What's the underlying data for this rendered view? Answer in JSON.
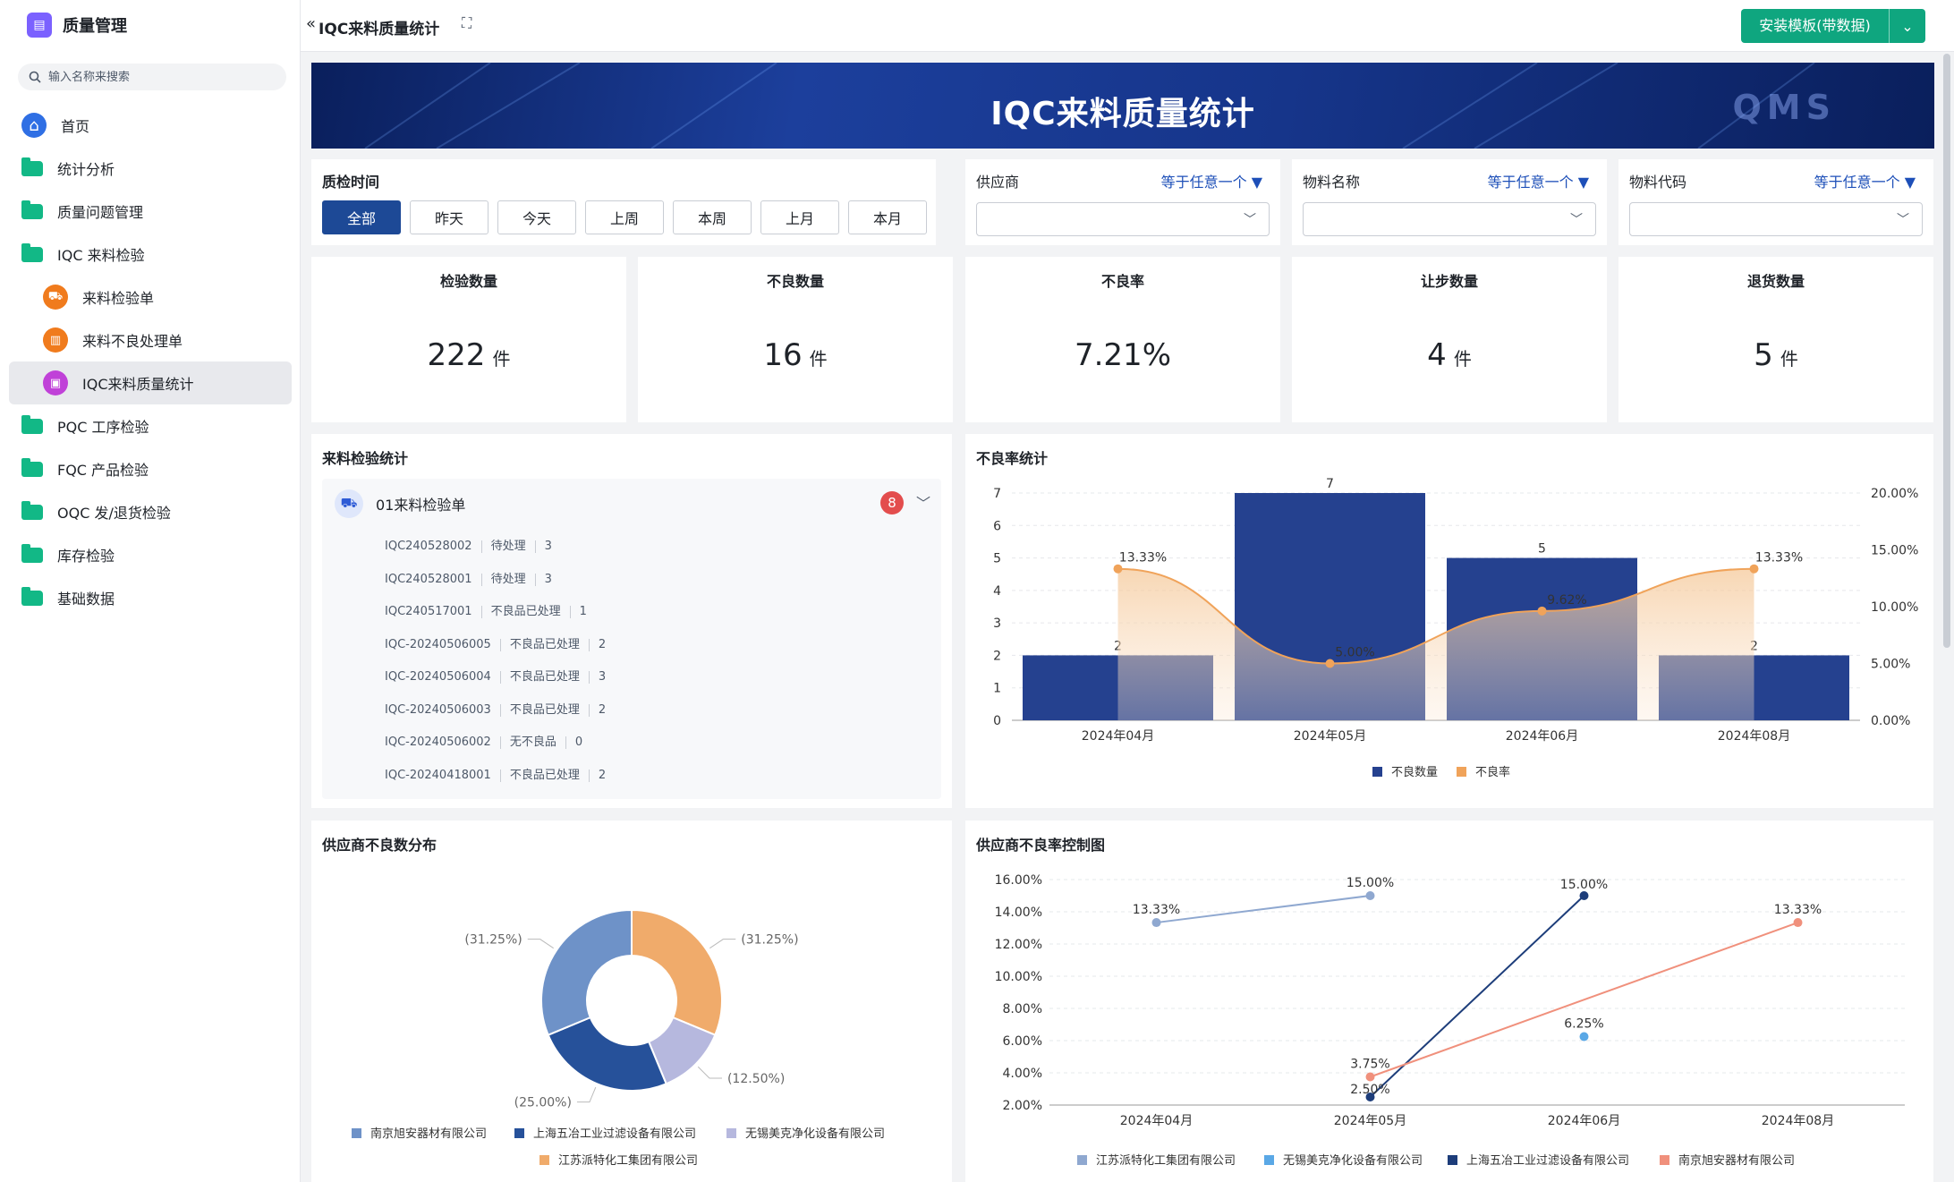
{
  "sidebar": {
    "app_title": "质量管理",
    "search_placeholder": "输入名称来搜索",
    "items": [
      {
        "label": "首页",
        "icon": "home-icon",
        "level": 0
      },
      {
        "label": "统计分析",
        "icon": "folder-icon",
        "level": 0
      },
      {
        "label": "质量问题管理",
        "icon": "folder-icon",
        "level": 0
      },
      {
        "label": "IQC 来料检验",
        "icon": "folder-icon",
        "level": 0
      },
      {
        "label": "来料检验单",
        "icon": "truck-icon",
        "level": 1
      },
      {
        "label": "来料不良处理单",
        "icon": "report-icon",
        "level": 1
      },
      {
        "label": "IQC来料质量统计",
        "icon": "chart-icon",
        "level": 1,
        "active": true
      },
      {
        "label": "PQC 工序检验",
        "icon": "folder-icon",
        "level": 0
      },
      {
        "label": "FQC 产品检验",
        "icon": "folder-icon",
        "level": 0
      },
      {
        "label": "OQC 发/退货检验",
        "icon": "folder-icon",
        "level": 0
      },
      {
        "label": "库存检验",
        "icon": "folder-icon",
        "level": 0
      },
      {
        "label": "基础数据",
        "icon": "folder-icon",
        "level": 0
      }
    ]
  },
  "topbar": {
    "page_title": "IQC来料质量统计",
    "install_button": "安装模板(带数据)"
  },
  "banner": {
    "title": "IQC来料质量统计",
    "logo_text": "QMS"
  },
  "filters": {
    "date": {
      "label": "质检时间",
      "buttons": [
        "全部",
        "昨天",
        "今天",
        "上周",
        "本周",
        "上月",
        "本月"
      ],
      "selected": "全部"
    },
    "supplier": {
      "label": "供应商",
      "operator": "等于任意一个"
    },
    "material_name": {
      "label": "物料名称",
      "operator": "等于任意一个"
    },
    "material_code": {
      "label": "物料代码",
      "operator": "等于任意一个"
    }
  },
  "kpis": [
    {
      "title": "检验数量",
      "value": "222",
      "unit": "件"
    },
    {
      "title": "不良数量",
      "value": "16",
      "unit": "件"
    },
    {
      "title": "不良率",
      "value": "7.21%",
      "unit": ""
    },
    {
      "title": "让步数量",
      "value": "4",
      "unit": "件"
    },
    {
      "title": "退货数量",
      "value": "5",
      "unit": "件"
    }
  ],
  "inspection_list": {
    "title": "来料检验统计",
    "group_name": "01来料检验单",
    "count": "8",
    "rows": [
      {
        "code": "IQC240528002",
        "status": "待处理",
        "qty": "3"
      },
      {
        "code": "IQC240528001",
        "status": "待处理",
        "qty": "3"
      },
      {
        "code": "IQC240517001",
        "status": "不良品已处理",
        "qty": "1"
      },
      {
        "code": "IQC-20240506005",
        "status": "不良品已处理",
        "qty": "2"
      },
      {
        "code": "IQC-20240506004",
        "status": "不良品已处理",
        "qty": "3"
      },
      {
        "code": "IQC-20240506003",
        "status": "不良品已处理",
        "qty": "2"
      },
      {
        "code": "IQC-20240506002",
        "status": "无不良品",
        "qty": "0"
      },
      {
        "code": "IQC-20240418001",
        "status": "不良品已处理",
        "qty": "2"
      }
    ]
  },
  "chart_data": [
    {
      "type": "bar",
      "title": "不良率统计",
      "categories": [
        "2024年04月",
        "2024年05月",
        "2024年06月",
        "2024年08月"
      ],
      "series": [
        {
          "name": "不良数量",
          "type": "bar",
          "values": [
            2,
            7,
            5,
            2
          ],
          "color": "#25418f"
        },
        {
          "name": "不良率",
          "type": "line",
          "values": [
            13.33,
            5.0,
            9.62,
            13.33
          ],
          "labels": [
            "13.33%",
            "5.00%",
            "9.62%",
            "13.33%"
          ],
          "color": "#f0a35a"
        }
      ],
      "ylim": [
        0,
        7
      ],
      "y2lim": [
        0,
        20
      ],
      "y_ticks": [
        "0",
        "1",
        "2",
        "3",
        "4",
        "5",
        "6",
        "7"
      ],
      "y2_ticks": [
        "0.00%",
        "5.00%",
        "10.00%",
        "15.00%",
        "20.00%"
      ],
      "legend": "bottom-center"
    },
    {
      "type": "pie",
      "title": "供应商不良数分布",
      "slices": [
        {
          "name": "江苏派特化工集团有限公司",
          "value": 31.25,
          "label": "(31.25%)",
          "color": "#f0ab6b"
        },
        {
          "name": "无锡美克净化设备有限公司",
          "value": 12.5,
          "label": "(12.50%)",
          "color": "#b6b8de"
        },
        {
          "name": "上海五冶工业过滤设备有限公司",
          "value": 25.0,
          "label": "(25.00%)",
          "color": "#26519a"
        },
        {
          "name": "南京旭安器材有限公司",
          "value": 31.25,
          "label": "(31.25%)",
          "color": "#6e92c8"
        }
      ],
      "legend_order": [
        "南京旭安器材有限公司",
        "上海五冶工业过滤设备有限公司",
        "无锡美克净化设备有限公司",
        "江苏派特化工集团有限公司"
      ],
      "legend": "bottom-center"
    },
    {
      "type": "line",
      "title": "供应商不良率控制图",
      "categories": [
        "2024年04月",
        "2024年05月",
        "2024年06月",
        "2024年08月"
      ],
      "ylim": [
        2,
        16
      ],
      "y_ticks": [
        "2.00%",
        "4.00%",
        "6.00%",
        "8.00%",
        "10.00%",
        "12.00%",
        "14.00%",
        "16.00%"
      ],
      "series": [
        {
          "name": "江苏派特化工集团有限公司",
          "color": "#8fa8d0",
          "points": [
            {
              "x": "2024年04月",
              "y": 13.33,
              "label": "13.33%"
            },
            {
              "x": "2024年05月",
              "y": 15.0,
              "label": "15.00%"
            }
          ]
        },
        {
          "name": "无锡美克净化设备有限公司",
          "color": "#5aa8e6",
          "points": [
            {
              "x": "2024年06月",
              "y": 6.25,
              "label": "6.25%"
            }
          ]
        },
        {
          "name": "上海五冶工业过滤设备有限公司",
          "color": "#1d3d7a",
          "points": [
            {
              "x": "2024年05月",
              "y": 2.5,
              "label": "2.50%"
            },
            {
              "x": "2024年06月",
              "y": 15.0,
              "label": "15.00%"
            }
          ]
        },
        {
          "name": "南京旭安器材有限公司",
          "color": "#f0907c",
          "points": [
            {
              "x": "2024年05月",
              "y": 3.75,
              "label": "3.75%"
            },
            {
              "x": "2024年08月",
              "y": 13.33,
              "label": "13.33%"
            }
          ]
        }
      ],
      "legend": "bottom-center"
    }
  ]
}
